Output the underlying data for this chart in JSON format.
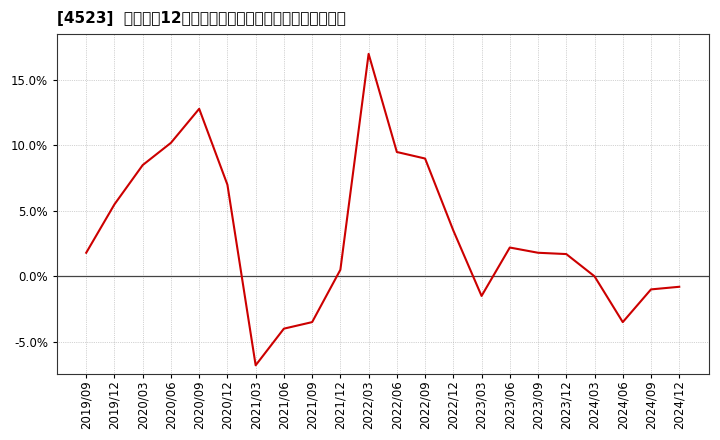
{
  "title": "[4523]  売上高の12か月移動合計の対前年同期増減率の推移",
  "x_labels": [
    "2019/09",
    "2019/12",
    "2020/03",
    "2020/06",
    "2020/09",
    "2020/12",
    "2021/03",
    "2021/06",
    "2021/09",
    "2021/12",
    "2022/03",
    "2022/06",
    "2022/09",
    "2022/12",
    "2023/03",
    "2023/06",
    "2023/09",
    "2023/12",
    "2024/03",
    "2024/06",
    "2024/09",
    "2024/12"
  ],
  "y_values": [
    1.8,
    5.5,
    8.5,
    10.2,
    12.8,
    7.0,
    -6.8,
    -4.0,
    -3.5,
    0.5,
    17.0,
    9.5,
    9.0,
    3.5,
    -1.5,
    2.2,
    1.8,
    1.7,
    0.0,
    -3.5,
    -1.0,
    -0.8
  ],
  "line_color": "#cc0000",
  "bg_color": "#ffffff",
  "plot_bg_color": "#ffffff",
  "grid_color": "#aaaaaa",
  "zero_line_color": "#444444",
  "ylim": [
    -7.5,
    18.5
  ],
  "yticks": [
    -5.0,
    0.0,
    5.0,
    10.0,
    15.0
  ],
  "title_fontsize": 11,
  "tick_fontsize": 8.5
}
